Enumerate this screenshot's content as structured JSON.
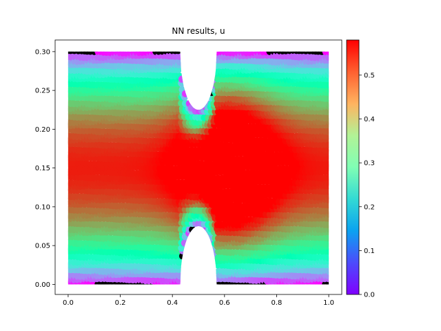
{
  "chart_data": {
    "type": "scatter",
    "title": "NN results, u",
    "xlabel": "",
    "ylabel": "",
    "xlim": [
      -0.05,
      1.05
    ],
    "ylim": [
      -0.013,
      0.315
    ],
    "x_ticks": [
      0.0,
      0.2,
      0.4,
      0.6,
      0.8,
      1.0
    ],
    "x_tick_labels": [
      "0.0",
      "0.2",
      "0.4",
      "0.6",
      "0.8",
      "1.0"
    ],
    "y_ticks": [
      0.0,
      0.05,
      0.1,
      0.15,
      0.2,
      0.25,
      0.3
    ],
    "y_tick_labels": [
      "0.00",
      "0.05",
      "0.10",
      "0.15",
      "0.20",
      "0.25",
      "0.30"
    ],
    "grid": false,
    "colormap": "rainbow",
    "domain": {
      "x_range": [
        0.0,
        1.0
      ],
      "y_range": [
        0.0,
        0.3
      ],
      "notch_center_x": 0.5,
      "notch_half_width": 0.07,
      "top_notch_bottom_y": 0.225,
      "bottom_notch_top_y": 0.075
    },
    "field_summary": {
      "variable": "u",
      "min": 0.0,
      "max": 0.58,
      "max_location_description": "center channel near y = 0.15; elevated above the gap at x = 0.5",
      "boundary_value": 0.0
    },
    "colorbar": {
      "min": 0.0,
      "max": 0.58,
      "ticks": [
        0.0,
        0.1,
        0.2,
        0.3,
        0.4,
        0.5
      ],
      "tick_labels": [
        "0.0",
        "0.1",
        "0.2",
        "0.3",
        "0.4",
        "0.5"
      ]
    }
  }
}
